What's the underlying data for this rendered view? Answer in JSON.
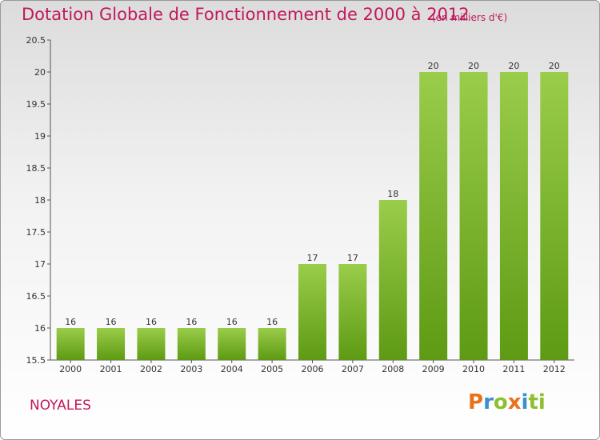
{
  "header": {
    "title": "Dotation Globale de Fonctionnement de 2000 à 2012",
    "subtitle": "(en milliers d'€)"
  },
  "footer": {
    "commune": "NOYALES",
    "logo_letters": [
      "P",
      "r",
      "o",
      "x",
      "i",
      "t",
      "i"
    ]
  },
  "colors": {
    "title": "#c2185b",
    "bar_light": "#9acd4a",
    "bar_dark": "#5e9a13",
    "axis": "#555555"
  },
  "chart_data": {
    "type": "bar",
    "title": "Dotation Globale de Fonctionnement de 2000 à 2012",
    "subtitle": "(en milliers d'€)",
    "xlabel": "",
    "ylabel": "",
    "categories": [
      "2000",
      "2001",
      "2002",
      "2003",
      "2004",
      "2005",
      "2006",
      "2007",
      "2008",
      "2009",
      "2010",
      "2011",
      "2012"
    ],
    "values": [
      16,
      16,
      16,
      16,
      16,
      16,
      17,
      17,
      18,
      20,
      20,
      20,
      20
    ],
    "data_labels": [
      "16",
      "16",
      "16",
      "16",
      "16",
      "16",
      "17",
      "17",
      "18",
      "20",
      "20",
      "20",
      "20"
    ],
    "ylim": [
      15.5,
      20.5
    ],
    "yticks": [
      "15.5",
      "16",
      "16.5",
      "17",
      "17.5",
      "18",
      "18.5",
      "19",
      "19.5",
      "20",
      "20.5"
    ],
    "grid": false,
    "legend": "none"
  }
}
